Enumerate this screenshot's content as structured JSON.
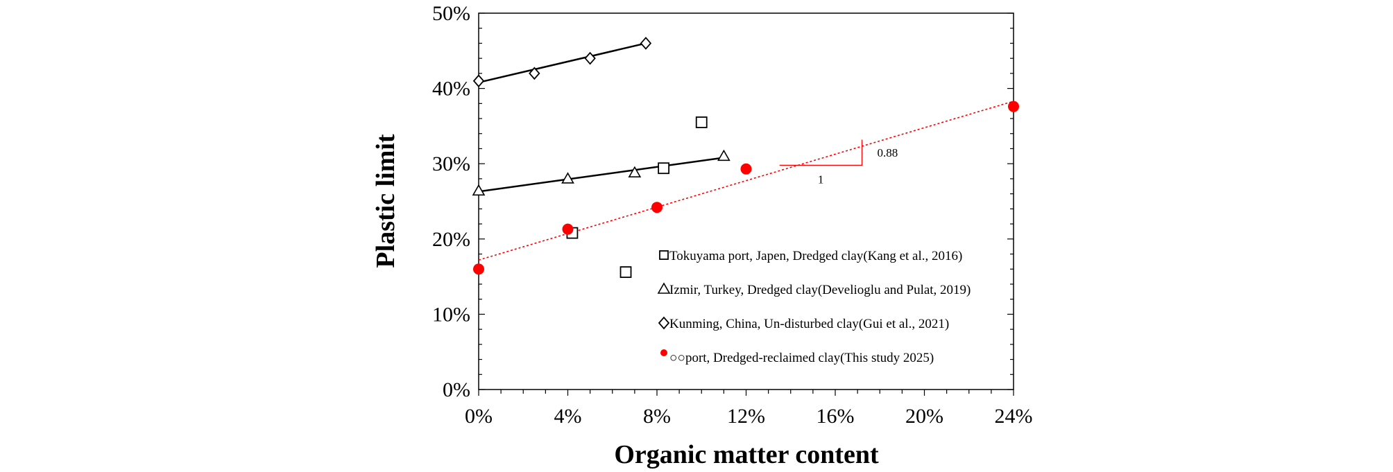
{
  "chart_data": {
    "type": "scatter",
    "xlabel": "Organic matter content",
    "ylabel": "Plastic limit",
    "xlim": [
      0,
      24
    ],
    "ylim": [
      0,
      50
    ],
    "x_ticks": [
      "0%",
      "4%",
      "8%",
      "12%",
      "16%",
      "20%",
      "24%"
    ],
    "y_ticks": [
      "0%",
      "10%",
      "20%",
      "30%",
      "40%",
      "50%"
    ],
    "grid": false,
    "legend_position": "bottom-right",
    "series": [
      {
        "name": "Tokuyama port, Japen, Dredged clay(Kang et al., 2016)",
        "marker": "square",
        "color": "#000000",
        "points": [
          [
            4.2,
            20.8
          ],
          [
            6.6,
            15.6
          ],
          [
            8.3,
            29.4
          ],
          [
            10.0,
            35.5
          ]
        ]
      },
      {
        "name": "Izmir, Turkey, Dredged clay(Develioglu and Pulat, 2019)",
        "marker": "triangle",
        "color": "#000000",
        "points": [
          [
            0,
            26.4
          ],
          [
            4.0,
            28.0
          ],
          [
            7.0,
            28.8
          ],
          [
            11.0,
            31.0
          ]
        ],
        "trendline": [
          [
            0,
            26.3
          ],
          [
            11.0,
            30.8
          ]
        ]
      },
      {
        "name": "Kunming, China, Un-disturbed clay(Gui et al., 2021)",
        "marker": "diamond",
        "color": "#000000",
        "points": [
          [
            0,
            41.0
          ],
          [
            2.5,
            42.0
          ],
          [
            5.0,
            44.0
          ],
          [
            7.5,
            46.0
          ]
        ],
        "trendline": [
          [
            0,
            40.8
          ],
          [
            7.5,
            46.0
          ]
        ]
      },
      {
        "name": "○○port, Dredged-reclaimed clay(This study 2025)",
        "marker": "circle-filled",
        "color": "#ff0000",
        "points": [
          [
            0,
            16.0
          ],
          [
            4.0,
            21.3
          ],
          [
            8.0,
            24.2
          ],
          [
            12.0,
            29.3
          ],
          [
            24.0,
            37.6
          ]
        ],
        "trendline": [
          [
            0,
            17.2
          ],
          [
            24.0,
            38.3
          ]
        ],
        "trendline_style": "dotted"
      }
    ],
    "slope_annotation": {
      "run_label": "1",
      "rise_label": "0.88",
      "color": "#ff0000",
      "corner_x": 17.2,
      "start_x": 13.5,
      "corner_y": 29.8,
      "top_y": 33.2
    }
  }
}
